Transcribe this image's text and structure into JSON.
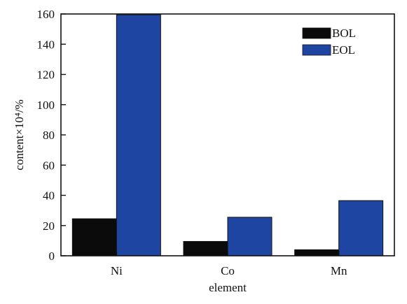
{
  "chart_data": {
    "type": "bar",
    "categories": [
      "Ni",
      "Co",
      "Mn"
    ],
    "series": [
      {
        "name": "BOL",
        "values": [
          24.5,
          9.5,
          4
        ],
        "color": "#0b0b0b"
      },
      {
        "name": "EOL",
        "values": [
          159.5,
          25.5,
          36.5
        ],
        "color": "#1f45a2"
      }
    ],
    "xlabel": "element",
    "ylabel": "content×10⁴/%",
    "ylim": [
      0,
      160
    ],
    "yticks": [
      0,
      20,
      40,
      60,
      80,
      100,
      120,
      140,
      160
    ],
    "legend_position": "top-right",
    "grid": false
  }
}
